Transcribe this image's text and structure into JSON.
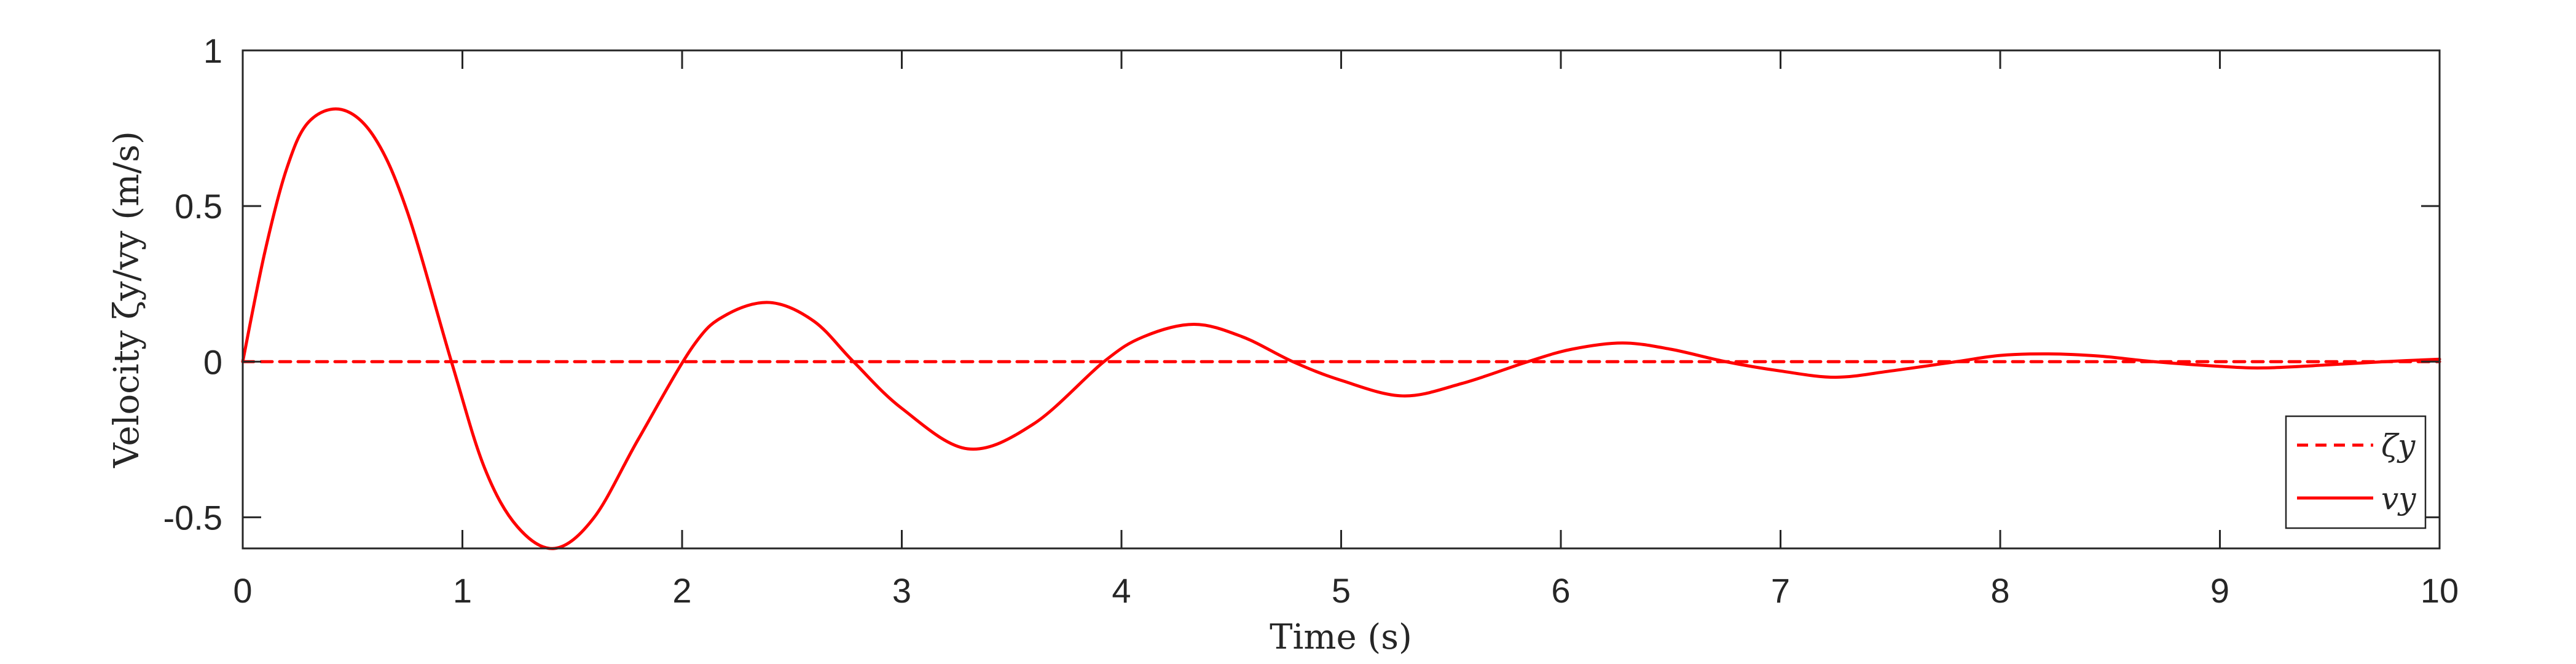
{
  "chart_data": {
    "type": "line",
    "xlabel": "Time (s)",
    "ylabel": "Velocity ζy/vy (m/s)",
    "xlim": [
      0,
      10
    ],
    "ylim": [
      -0.6,
      1
    ],
    "xticks": [
      0,
      1,
      2,
      3,
      4,
      5,
      6,
      7,
      8,
      9,
      10
    ],
    "xtick_labels": [
      "0",
      "1",
      "2",
      "3",
      "4",
      "5",
      "6",
      "7",
      "8",
      "9",
      "10"
    ],
    "yticks": [
      -0.5,
      0,
      0.5,
      1
    ],
    "ytick_labels": [
      "-0.5",
      "0",
      "0.5",
      "1"
    ],
    "grid": false,
    "legend_position": "bottom-right",
    "colors": {
      "series": "#ff0000",
      "axes": "#262626"
    },
    "series": [
      {
        "name": "ζy",
        "style": "dashed",
        "x": [
          0,
          10
        ],
        "y": [
          0,
          0
        ]
      },
      {
        "name": "vy",
        "style": "solid",
        "x": [
          0,
          0.1,
          0.2,
          0.3,
          0.45,
          0.6,
          0.75,
          0.95,
          1.1,
          1.25,
          1.42,
          1.6,
          1.8,
          2.05,
          2.2,
          2.4,
          2.6,
          2.78,
          3.0,
          3.3,
          3.6,
          3.92,
          4.1,
          4.33,
          4.55,
          4.78,
          5.0,
          5.28,
          5.55,
          5.85,
          6.05,
          6.28,
          6.5,
          6.75,
          7.0,
          7.25,
          7.5,
          7.8,
          8.0,
          8.22,
          8.45,
          8.7,
          9.0,
          9.2,
          9.5,
          9.75,
          10.0
        ],
        "y": [
          0,
          0.35,
          0.62,
          0.77,
          0.81,
          0.72,
          0.48,
          0.0,
          -0.34,
          -0.53,
          -0.6,
          -0.5,
          -0.25,
          0.05,
          0.15,
          0.19,
          0.13,
          0.0,
          -0.15,
          -0.28,
          -0.2,
          0.0,
          0.08,
          0.12,
          0.08,
          0.0,
          -0.06,
          -0.11,
          -0.07,
          0.0,
          0.04,
          0.06,
          0.04,
          0.0,
          -0.03,
          -0.05,
          -0.03,
          0.0,
          0.02,
          0.025,
          0.018,
          0.0,
          -0.015,
          -0.02,
          -0.01,
          0.0,
          0.008
        ]
      }
    ]
  }
}
